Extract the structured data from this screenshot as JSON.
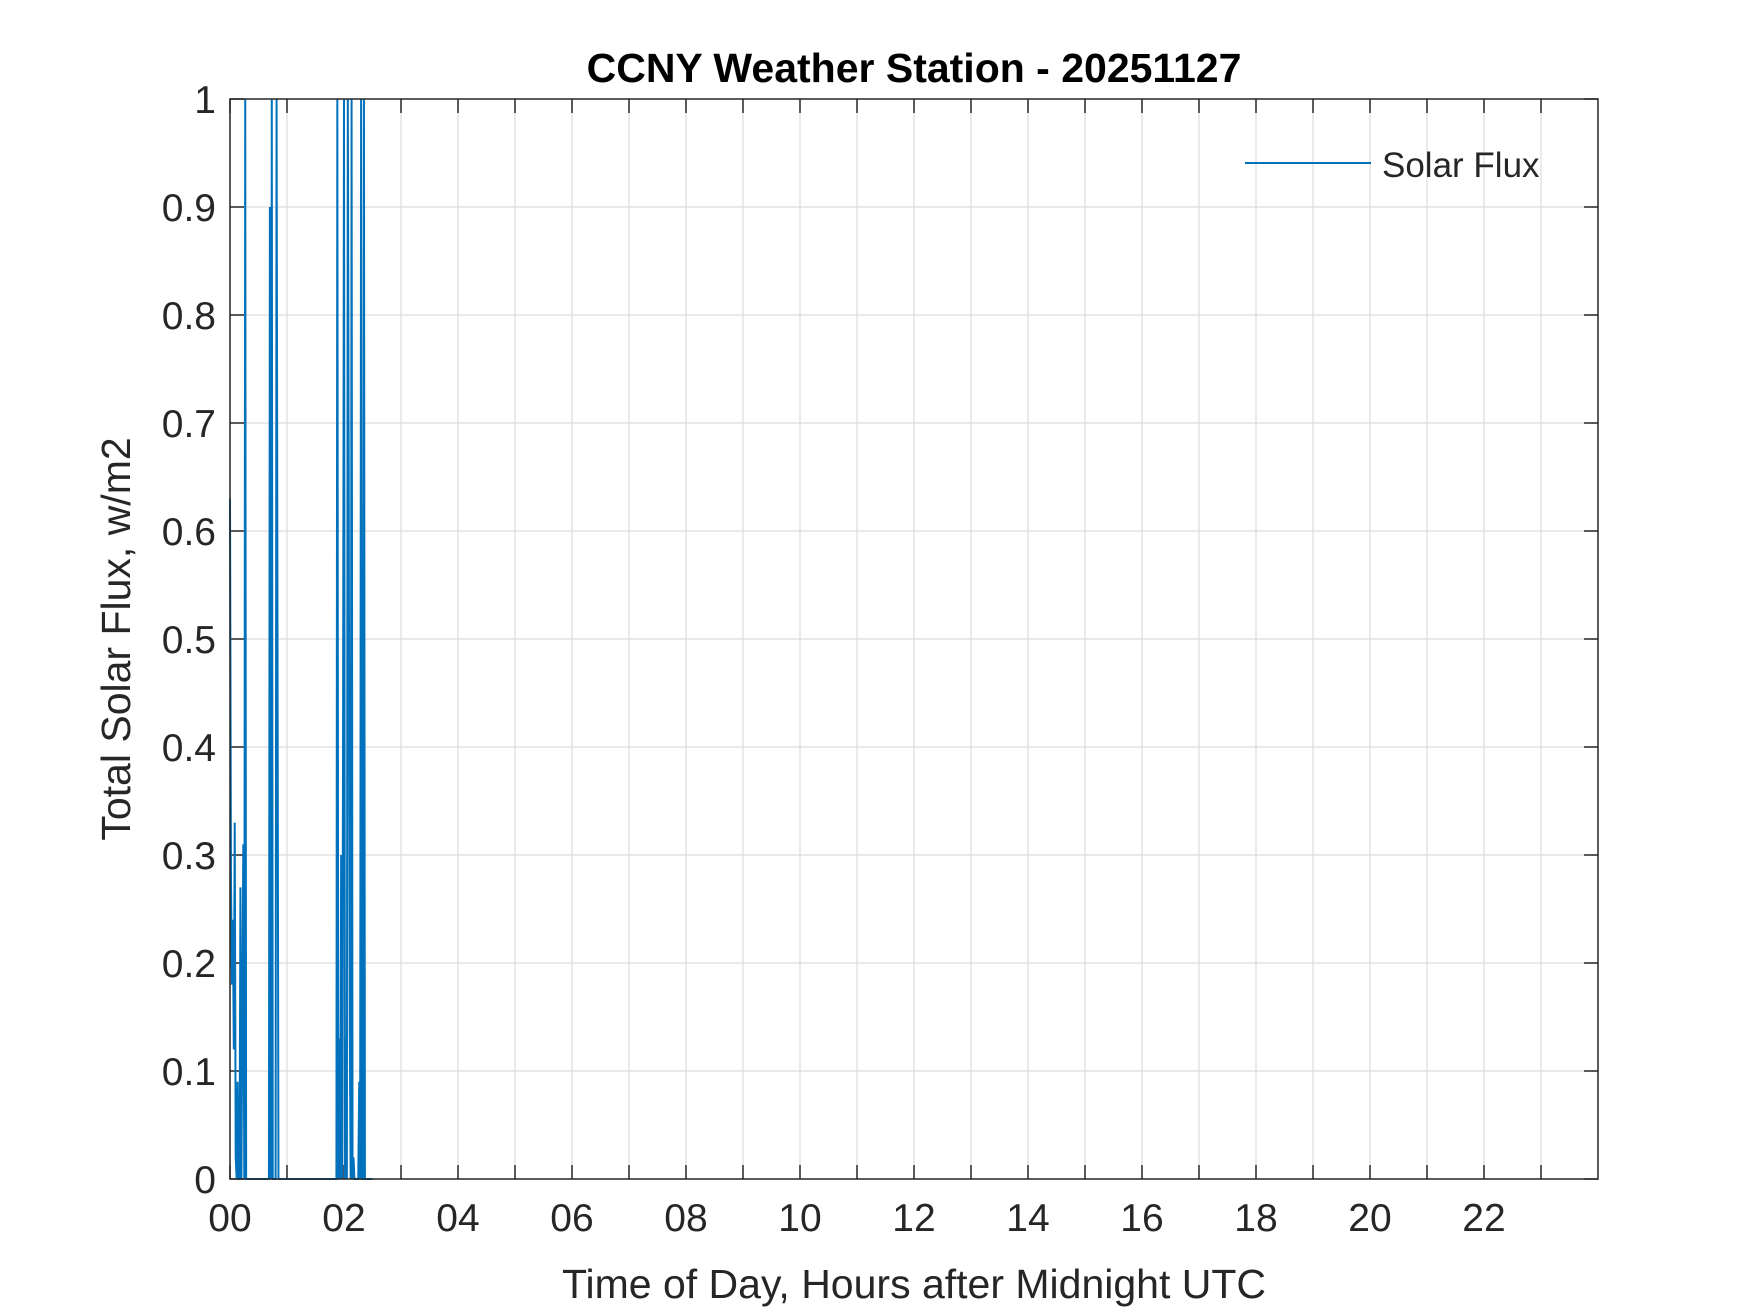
{
  "colors": {
    "series": "#0072BD",
    "grid": "#DCDCDC",
    "axis": "#262626",
    "background": "#FFFFFF"
  },
  "chart_data": {
    "type": "line",
    "title": "CCNY Weather Station - 20251127",
    "xlabel": "Time of Day, Hours after Midnight UTC",
    "ylabel": "Total Solar Flux, w/m2",
    "xlim": [
      0,
      24
    ],
    "ylim": [
      0,
      1
    ],
    "grid": true,
    "legend_position": "top-right",
    "x_tick_values": [
      0,
      2,
      4,
      6,
      8,
      10,
      12,
      14,
      16,
      18,
      20,
      22
    ],
    "x_tick_labels": [
      "00",
      "02",
      "04",
      "06",
      "08",
      "10",
      "12",
      "14",
      "16",
      "18",
      "20",
      "22"
    ],
    "x_minor_tick_values": [
      1,
      3,
      5,
      7,
      9,
      11,
      13,
      15,
      17,
      19,
      21,
      23
    ],
    "y_tick_values": [
      0,
      0.1,
      0.2,
      0.3,
      0.4,
      0.5,
      0.6,
      0.7,
      0.8,
      0.9,
      1
    ],
    "y_tick_labels": [
      "0",
      "0.1",
      "0.2",
      "0.3",
      "0.4",
      "0.5",
      "0.6",
      "0.7",
      "0.8",
      "0.9",
      "1"
    ],
    "series": [
      {
        "name": "Solar Flux",
        "x": [
          0,
          0.017,
          0.033,
          0.05,
          0.067,
          0.083,
          0.1,
          0.117,
          0.133,
          0.15,
          0.167,
          0.183,
          0.2,
          0.217,
          0.233,
          0.25,
          0.267,
          0.283,
          0.3,
          0.317,
          0.333,
          0.35,
          0.367,
          0.383,
          0.4,
          0.417,
          0.45,
          0.5,
          0.55,
          0.6,
          0.65,
          0.683,
          0.7,
          0.717,
          0.733,
          0.75,
          0.767,
          0.783,
          0.8,
          0.817,
          0.85,
          0.9,
          0.95,
          1.0,
          1.1,
          1.2,
          1.3,
          1.4,
          1.5,
          1.6,
          1.7,
          1.75,
          1.783,
          1.8,
          1.833,
          1.85,
          1.867,
          1.883,
          1.9,
          1.917,
          1.933,
          1.95,
          1.967,
          1.983,
          2.0,
          2.017,
          2.033,
          2.05,
          2.067,
          2.083,
          2.1,
          2.117,
          2.133,
          2.15,
          2.167,
          2.183,
          2.2,
          2.217,
          2.233,
          2.25,
          2.267,
          2.283,
          2.3,
          2.317,
          2.333,
          2.35,
          2.367,
          2.383,
          2.4,
          2.417,
          2.433,
          2.45,
          2.5
        ],
        "y": [
          0.63,
          0.28,
          0.18,
          0.24,
          0.12,
          0.33,
          0.02,
          0.0,
          0.09,
          0.0,
          0.0,
          0.27,
          0.0,
          0.15,
          0.31,
          0.0,
          1.0,
          0.0,
          0.0,
          0.0,
          0.0,
          0.0,
          0.0,
          0.0,
          0.0,
          0.0,
          0.0,
          0.0,
          0.0,
          0.0,
          0.0,
          0.0,
          0.9,
          0.0,
          1.0,
          0.0,
          0.0,
          0.0,
          0.0,
          1.0,
          0.0,
          0.0,
          0.0,
          0.0,
          0.0,
          0.0,
          0.0,
          0.0,
          0.0,
          0.0,
          0.0,
          0.0,
          0.0,
          0.0,
          0.0,
          0.0,
          0.0,
          1.0,
          0.0,
          0.13,
          0.0,
          0.3,
          0.0,
          0.39,
          1.0,
          0.0,
          0.13,
          0.0,
          1.0,
          0.65,
          0.15,
          0.0,
          1.0,
          0.0,
          0.02,
          0.0,
          0.0,
          0.0,
          0.0,
          0.0,
          0.09,
          0.0,
          1.0,
          0.0,
          0.0,
          1.0,
          0.0,
          0.0,
          0.0,
          0.0,
          0.0,
          0.0,
          0.0
        ]
      }
    ]
  }
}
